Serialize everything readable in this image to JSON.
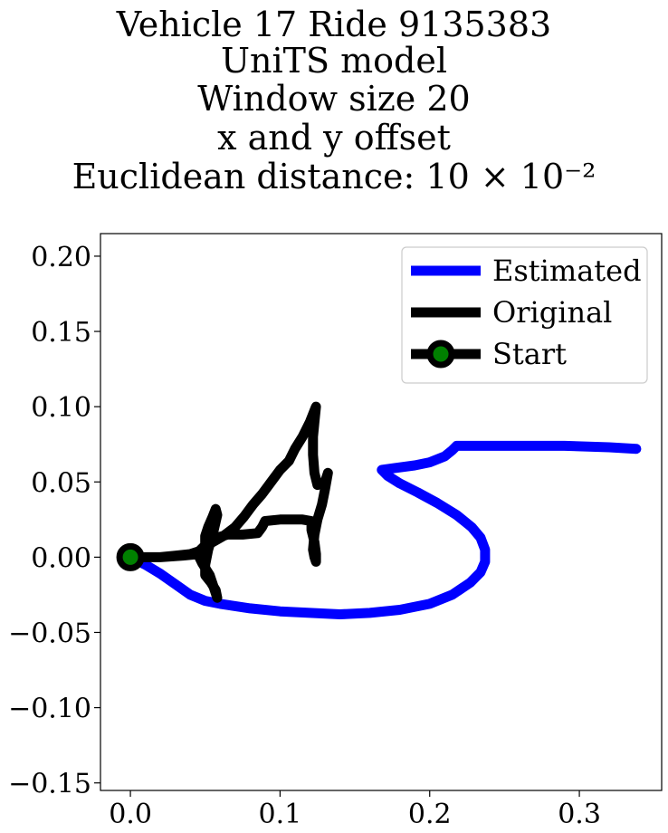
{
  "title_lines": [
    "Vehicle 17 Ride 9135383",
    "UniTS model",
    "Window size 20",
    "x and y offset",
    "Euclidean distance: 10 × 10⁻²"
  ],
  "chart_data": {
    "type": "line",
    "title": "Vehicle 17 Ride 9135383\nUniTS model\nWindow size 20\nx and y offset\nEuclidean distance: 10 × 10⁻²",
    "xlabel": "",
    "ylabel": "",
    "xlim": [
      -0.02,
      0.355
    ],
    "ylim": [
      -0.155,
      0.215
    ],
    "xticks": [
      0.0,
      0.1,
      0.2,
      0.3
    ],
    "xtick_labels": [
      "0.0",
      "0.1",
      "0.2",
      "0.3"
    ],
    "yticks": [
      0.2,
      0.15,
      0.1,
      0.05,
      0.0,
      -0.05,
      -0.1,
      -0.15
    ],
    "ytick_labels": [
      "0.20",
      "0.15",
      "0.10",
      "0.05",
      "0.00",
      "−0.05",
      "−0.10",
      "−0.15"
    ],
    "grid": false,
    "legend_position": "top-right",
    "series": [
      {
        "name": "Estimated",
        "color": "#0000ff",
        "points": [
          [
            0.0,
            0.0
          ],
          [
            0.01,
            -0.005
          ],
          [
            0.02,
            -0.011
          ],
          [
            0.03,
            -0.018
          ],
          [
            0.04,
            -0.025
          ],
          [
            0.05,
            -0.029
          ],
          [
            0.06,
            -0.031
          ],
          [
            0.08,
            -0.034
          ],
          [
            0.1,
            -0.036
          ],
          [
            0.12,
            -0.037
          ],
          [
            0.14,
            -0.038
          ],
          [
            0.16,
            -0.037
          ],
          [
            0.18,
            -0.035
          ],
          [
            0.2,
            -0.031
          ],
          [
            0.215,
            -0.025
          ],
          [
            0.227,
            -0.017
          ],
          [
            0.234,
            -0.01
          ],
          [
            0.237,
            -0.003
          ],
          [
            0.237,
            0.005
          ],
          [
            0.234,
            0.013
          ],
          [
            0.228,
            0.02
          ],
          [
            0.218,
            0.028
          ],
          [
            0.205,
            0.036
          ],
          [
            0.192,
            0.043
          ],
          [
            0.18,
            0.049
          ],
          [
            0.172,
            0.054
          ],
          [
            0.168,
            0.058
          ],
          [
            0.175,
            0.059
          ],
          [
            0.19,
            0.061
          ],
          [
            0.2,
            0.063
          ],
          [
            0.21,
            0.067
          ],
          [
            0.215,
            0.071
          ],
          [
            0.218,
            0.074
          ],
          [
            0.23,
            0.074
          ],
          [
            0.26,
            0.074
          ],
          [
            0.29,
            0.074
          ],
          [
            0.32,
            0.073
          ],
          [
            0.338,
            0.072
          ]
        ]
      },
      {
        "name": "Original",
        "color": "#000000",
        "points": [
          [
            0.0,
            0.0
          ],
          [
            0.01,
            0.0
          ],
          [
            0.02,
            0.0
          ],
          [
            0.03,
            0.001
          ],
          [
            0.04,
            0.002
          ],
          [
            0.046,
            0.004
          ],
          [
            0.05,
            0.008
          ],
          [
            0.05,
            0.014
          ],
          [
            0.052,
            0.02
          ],
          [
            0.055,
            0.027
          ],
          [
            0.057,
            0.032
          ],
          [
            0.058,
            0.028
          ],
          [
            0.055,
            0.015
          ],
          [
            0.052,
            0.005
          ],
          [
            0.05,
            -0.005
          ],
          [
            0.05,
            -0.012
          ],
          [
            0.054,
            -0.017
          ],
          [
            0.057,
            -0.022
          ],
          [
            0.058,
            -0.027
          ],
          [
            0.056,
            -0.021
          ],
          [
            0.053,
            -0.012
          ],
          [
            0.048,
            -0.004
          ],
          [
            0.045,
            0.002
          ],
          [
            0.05,
            0.007
          ],
          [
            0.055,
            0.01
          ],
          [
            0.062,
            0.014
          ],
          [
            0.07,
            0.02
          ],
          [
            0.076,
            0.027
          ],
          [
            0.082,
            0.035
          ],
          [
            0.088,
            0.042
          ],
          [
            0.094,
            0.05
          ],
          [
            0.1,
            0.058
          ],
          [
            0.106,
            0.064
          ],
          [
            0.11,
            0.072
          ],
          [
            0.115,
            0.08
          ],
          [
            0.12,
            0.09
          ],
          [
            0.124,
            0.1
          ],
          [
            0.123,
            0.09
          ],
          [
            0.122,
            0.08
          ],
          [
            0.122,
            0.068
          ],
          [
            0.123,
            0.056
          ],
          [
            0.125,
            0.048
          ],
          [
            0.13,
            0.05
          ],
          [
            0.132,
            0.056
          ],
          [
            0.13,
            0.045
          ],
          [
            0.128,
            0.035
          ],
          [
            0.125,
            0.025
          ],
          [
            0.123,
            0.015
          ],
          [
            0.122,
            0.005
          ],
          [
            0.123,
            0.0
          ],
          [
            0.124,
            -0.003
          ],
          [
            0.124,
            0.002
          ],
          [
            0.123,
            0.01
          ],
          [
            0.121,
            0.018
          ],
          [
            0.121,
            0.024
          ],
          [
            0.115,
            0.025
          ],
          [
            0.1,
            0.025
          ],
          [
            0.09,
            0.024
          ],
          [
            0.088,
            0.02
          ],
          [
            0.085,
            0.016
          ],
          [
            0.075,
            0.015
          ],
          [
            0.065,
            0.015
          ],
          [
            0.058,
            0.013
          ],
          [
            0.052,
            0.008
          ],
          [
            0.045,
            0.002
          ],
          [
            0.035,
            0.001
          ],
          [
            0.02,
            0.0
          ],
          [
            0.0,
            0.0
          ]
        ]
      },
      {
        "name": "Start",
        "color": "#000000",
        "marker_face": "#008000",
        "points": [
          [
            0.0,
            0.0
          ]
        ]
      }
    ]
  }
}
